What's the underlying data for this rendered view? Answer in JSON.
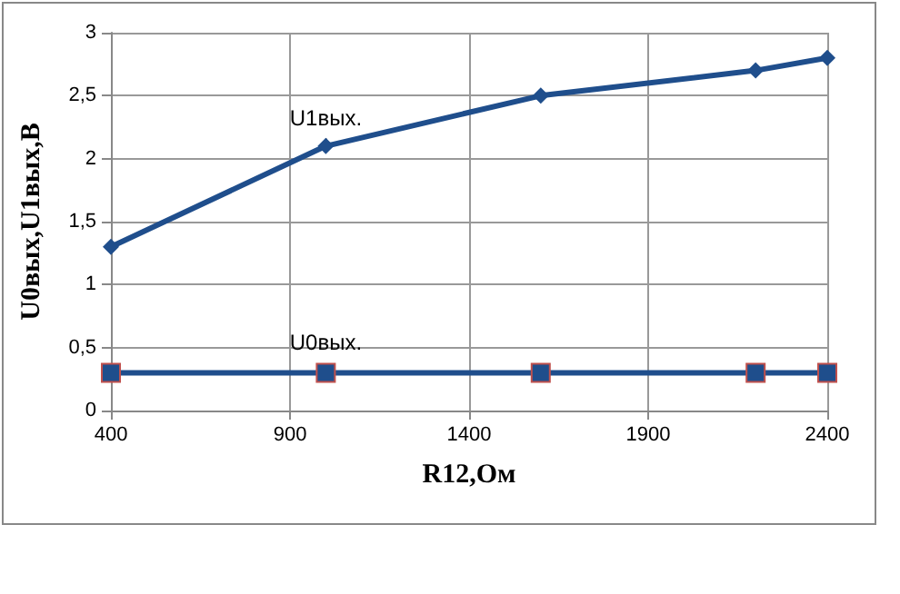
{
  "chart_data": {
    "type": "line",
    "xlabel": "R12,Ом",
    "ylabel": "U0вых,U1вых,В",
    "xlim": [
      400,
      2400
    ],
    "xticks": [
      400,
      900,
      1400,
      1900,
      2400
    ],
    "ylim": [
      0,
      3
    ],
    "yticks": [
      {
        "value": 0,
        "label": "0"
      },
      {
        "value": 0.5,
        "label": "0,5"
      },
      {
        "value": 1,
        "label": "1"
      },
      {
        "value": 1.5,
        "label": "1,5"
      },
      {
        "value": 2,
        "label": "2"
      },
      {
        "value": 2.5,
        "label": "2,5"
      },
      {
        "value": 3,
        "label": "3"
      }
    ],
    "grid": true,
    "line_style": "solid",
    "series": [
      {
        "name": "U1вых.",
        "color": "#1f4e8c",
        "marker": "diamond",
        "x": [
          400,
          1000,
          1600,
          2200,
          2400
        ],
        "values": [
          1.3,
          2.1,
          2.5,
          2.7,
          2.8
        ]
      },
      {
        "name": "U0вых.",
        "color": "#1f4e8c",
        "marker": "square",
        "x": [
          400,
          1000,
          1600,
          2200,
          2400
        ],
        "values": [
          0.3,
          0.3,
          0.3,
          0.3,
          0.3
        ]
      }
    ]
  }
}
